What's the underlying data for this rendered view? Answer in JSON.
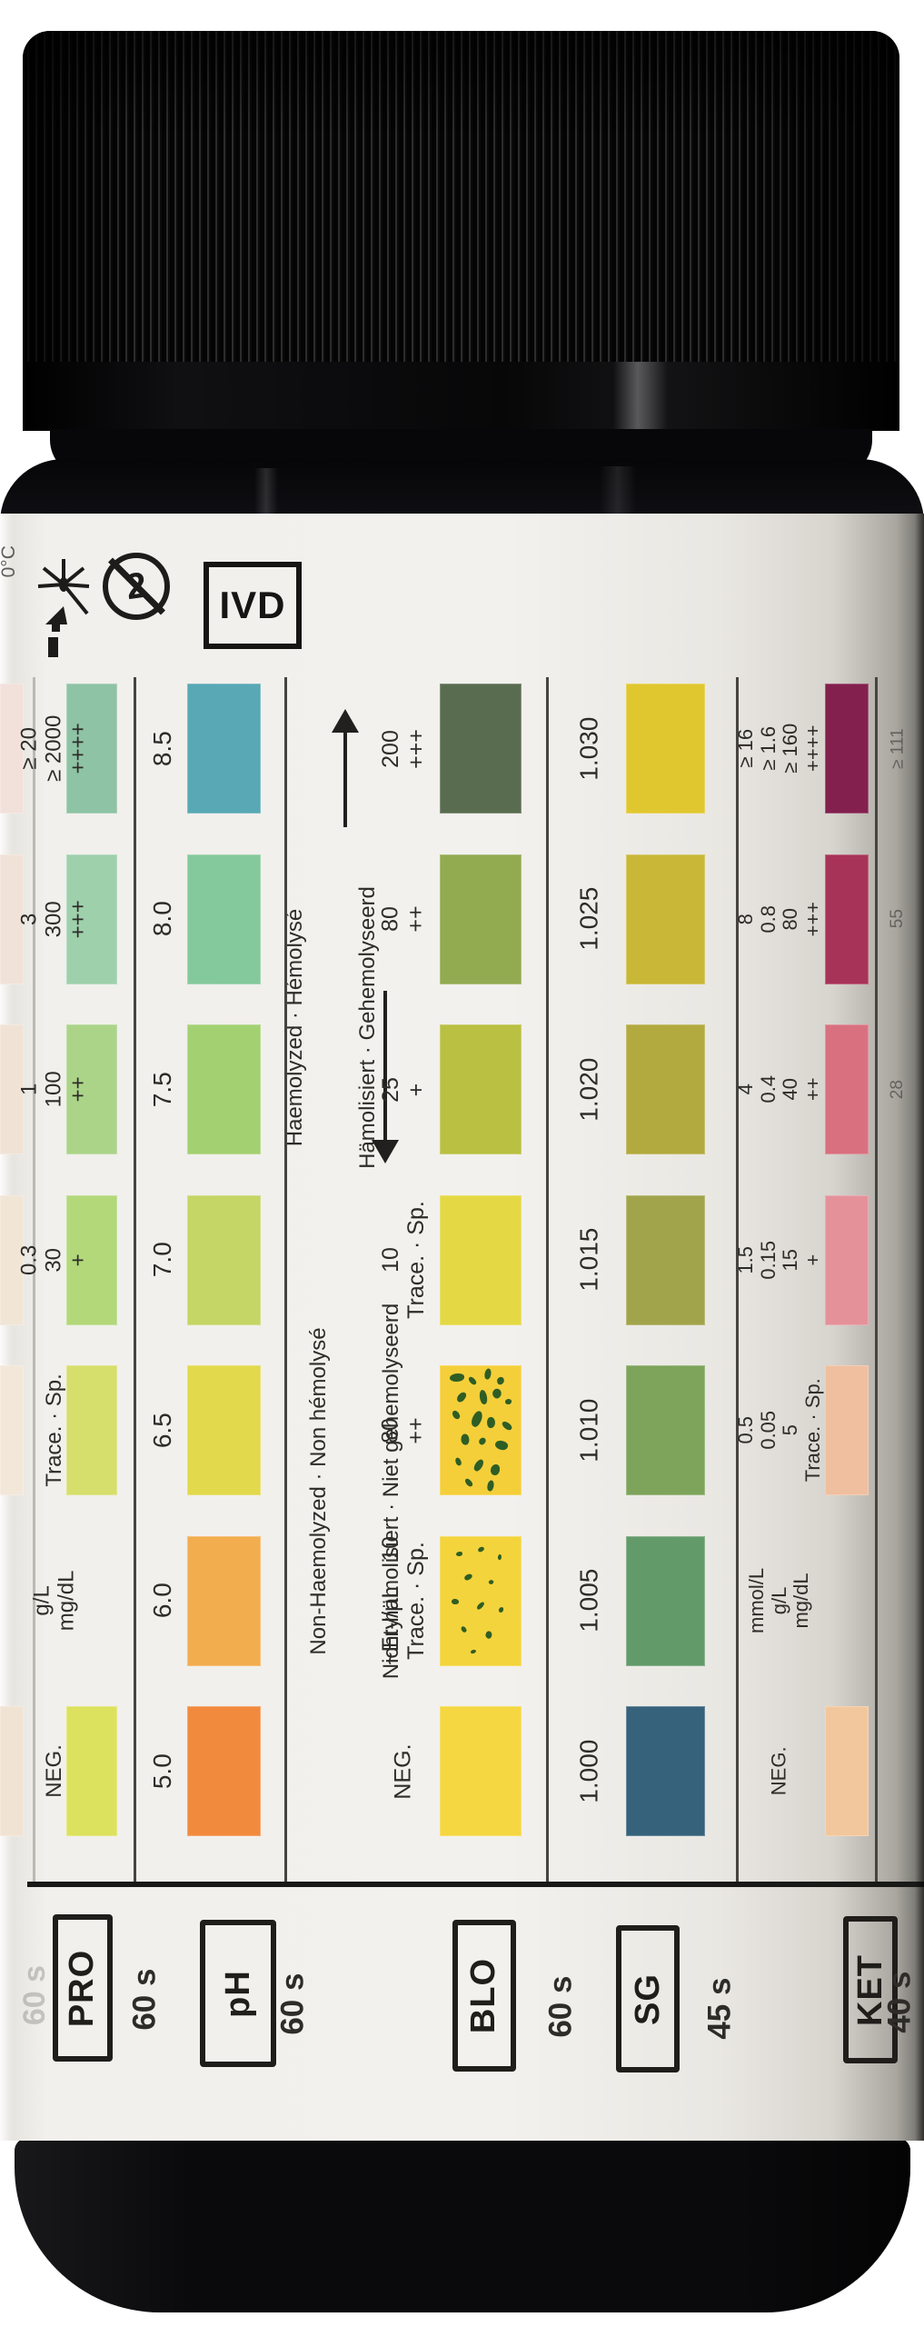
{
  "product_kind": "urine-reagent-strip-bottle",
  "symbols": {
    "storage_temp_fragment": "0°C",
    "keep_away_sunlight": "keep-away-from-sunlight-icon",
    "do_not_reuse_number": "2",
    "ivd": "IVD"
  },
  "chart": {
    "row_count": 7,
    "columns": [
      {
        "key": "uro_partial",
        "swatches": [
          "#f2e0da",
          "#f1e2d8",
          "#f0e3d6",
          "#f1e5d6",
          "#f2e7d9",
          null,
          "#f1e3d3"
        ],
        "rows": [
          [],
          [],
          [],
          [],
          [],
          [],
          []
        ]
      },
      {
        "key": "pro",
        "rows": [
          [
            "≥ 20",
            "≥ 2000",
            "++++"
          ],
          [
            "3",
            "300",
            "+++"
          ],
          [
            "1",
            "100",
            "++"
          ],
          [
            "0.3",
            "30",
            "+"
          ],
          [
            "Trace. · Sp."
          ],
          [
            "g/L",
            "mg/dL"
          ],
          [
            "NEG."
          ]
        ],
        "swatches": [
          "#8fc3a5",
          "#9ed0ac",
          "#abd489",
          "#b2d87a",
          "#d6df6c",
          null,
          "#dce25e"
        ]
      },
      {
        "key": "ph",
        "rows": [
          [
            "8.5"
          ],
          [
            "8.0"
          ],
          [
            "7.5"
          ],
          [
            "7.0"
          ],
          [
            "6.5"
          ],
          [
            "6.0"
          ],
          [
            "5.0"
          ]
        ],
        "swatches": [
          "#58a9b5",
          "#84c99b",
          "#a3d172",
          "#c5d566",
          "#e2d94c",
          "#f2ad4f",
          "#f28a3e"
        ]
      },
      {
        "key": "blo",
        "rows": [
          [
            "200",
            "+++"
          ],
          [
            "80",
            "++"
          ],
          [
            "25",
            "+"
          ],
          [
            "10",
            "Trace. · Sp."
          ],
          [
            "80",
            "++"
          ],
          [
            "~Ery/µL    10",
            "Trace. · Sp."
          ],
          [
            "NEG."
          ]
        ],
        "swatches": [
          "#5a6c50",
          "#92aa50",
          "#b9c042",
          "#e4d844",
          "#f4cf3a",
          "#f3d43c",
          "#f5d742"
        ],
        "speckled": [
          4,
          5
        ]
      },
      {
        "key": "sg",
        "rows": [
          [
            "1.030"
          ],
          [
            "1.025"
          ],
          [
            "1.020"
          ],
          [
            "1.015"
          ],
          [
            "1.010"
          ],
          [
            "1.005"
          ],
          [
            "1.000"
          ]
        ],
        "swatches": [
          "#e1c72f",
          "#c9b737",
          "#b2aa3f",
          "#a2a44b",
          "#7ea45b",
          "#639a69",
          "#36627b"
        ]
      },
      {
        "key": "ket",
        "rows": [
          [
            "≥ 16",
            "≥ 1.6",
            "≥ 160",
            "++++"
          ],
          [
            "8",
            "0.8",
            "80",
            "+++"
          ],
          [
            "4",
            "0.4",
            "40",
            "++"
          ],
          [
            "1.5",
            "0.15",
            "15",
            "+"
          ],
          [
            "0.5",
            "0.05",
            "5",
            "Trace. · Sp."
          ],
          [
            "mmol/L",
            "g/L",
            "mg/dL"
          ],
          [
            "NEG."
          ]
        ],
        "swatches": [
          "#83204e",
          "#a83358",
          "#d9707f",
          "#e5919a",
          "#efbf9f",
          null,
          "#f3c79d"
        ]
      }
    ],
    "blood_annotations": {
      "high_line1": "Haemolyzed · Hémolysé",
      "high_line2": "Hämolisiert · Gehemolyseerd",
      "low_line1": "Non-Haemolyzed · Non hémolysé",
      "low_line2": "Nicht-hämolisiert · Niet gehemolyseerd"
    },
    "speck_color": "#2f5e24"
  },
  "timings": [
    {
      "code": "PRO",
      "seconds": "60 s"
    },
    {
      "code": "pH",
      "seconds": "60 s"
    },
    {
      "code": "BLO",
      "seconds": "60 s"
    },
    {
      "code": "SG",
      "seconds": "45 s"
    },
    {
      "code": "KET",
      "seconds": "40 s"
    }
  ],
  "edge_fragments": {
    "left_bottom_time": "60 s",
    "right_values": [
      "≥ 111",
      "55",
      "28"
    ]
  }
}
